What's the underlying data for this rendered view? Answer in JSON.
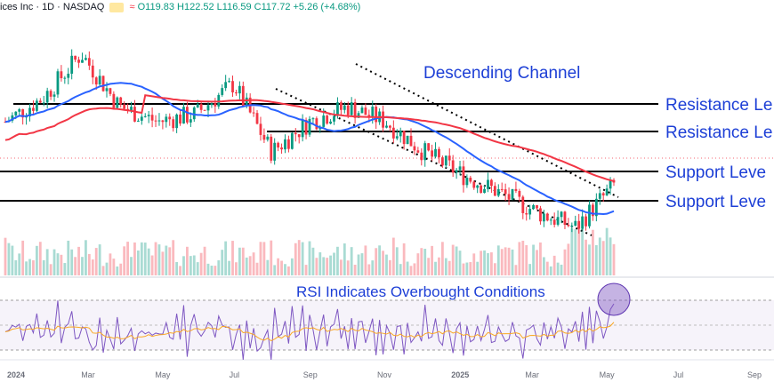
{
  "header": {
    "symbol": "ices Inc · 1D · NASDAQ",
    "ohlc": "O119.83  H122.52  L116.59  C117.72  +5.26 (+4.68%)"
  },
  "annotations": {
    "channel": "Descending Channel",
    "resistance1": "Resistance Le",
    "resistance2": "Resistance Le",
    "support1": "Support Leve",
    "support2": "Support Leve",
    "rsi": "RSI Indicates Overbought Conditions"
  },
  "x_ticks": [
    "2024",
    "Mar",
    "May",
    "Jul",
    "Sep",
    "Nov",
    "2025",
    "Mar",
    "May",
    "Jul",
    "Sep"
  ],
  "colors": {
    "up": "#089981",
    "down": "#f23645",
    "ma_blue": "#2962ff",
    "ma_red": "#f23645",
    "annotation": "#1d3fd6",
    "rsi": "#7e57c2"
  },
  "chart_data": {
    "type": "candlestick",
    "y_scale": "price",
    "horizontal_levels": [
      178,
      157,
      130,
      115
    ],
    "price_points": [
      {
        "x": "2024-01",
        "y": 160
      },
      {
        "x": "2024-02",
        "y": 176
      },
      {
        "x": "2024-03",
        "y": 205
      },
      {
        "x": "2024-04",
        "y": 170
      },
      {
        "x": "2024-05",
        "y": 160
      },
      {
        "x": "2024-06",
        "y": 165
      },
      {
        "x": "2024-07",
        "y": 185
      },
      {
        "x": "2024-08",
        "y": 140
      },
      {
        "x": "2024-09",
        "y": 160
      },
      {
        "x": "2024-10",
        "y": 170
      },
      {
        "x": "2024-11",
        "y": 160
      },
      {
        "x": "2024-12",
        "y": 140
      },
      {
        "x": "2025-01",
        "y": 125
      },
      {
        "x": "2025-02",
        "y": 113
      },
      {
        "x": "2025-03",
        "y": 100
      },
      {
        "x": "2025-04",
        "y": 90
      },
      {
        "x": "2025-05",
        "y": 118
      }
    ]
  }
}
